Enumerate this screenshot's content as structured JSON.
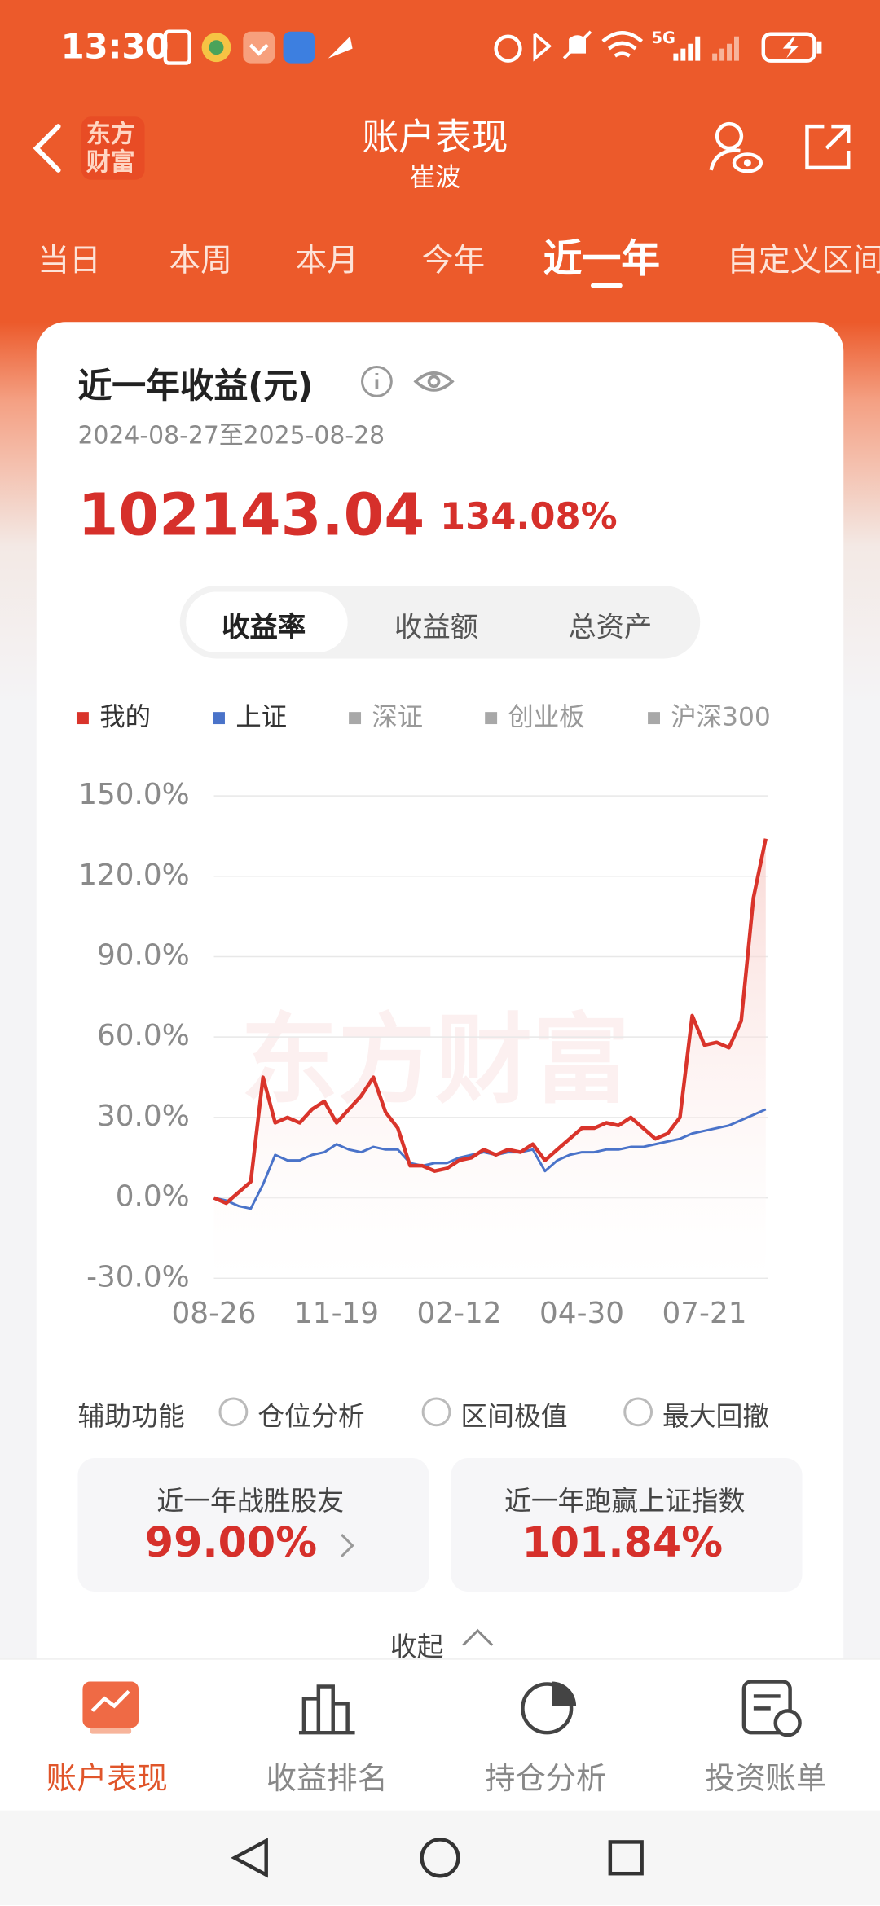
{
  "status_bar": {
    "time": "13:30",
    "network": "5G"
  },
  "header": {
    "logo": [
      "东方",
      "财富"
    ],
    "title": "账户表现",
    "subtitle": "崔波"
  },
  "tabs": {
    "items": [
      "当日",
      "本周",
      "本月",
      "今年",
      "近一年",
      "自定义区间"
    ],
    "active": 4
  },
  "card": {
    "title": "近一年收益(元)",
    "date_range": "2024-08-27至2025-08-28",
    "amount": "102143.04",
    "return_pct": "134.08%",
    "segments": [
      "收益率",
      "收益额",
      "总资产"
    ],
    "active_segment": 0
  },
  "chart_data": {
    "type": "line",
    "watermark": "东方财富",
    "categories": [
      "08-26",
      null,
      null,
      null,
      null,
      null,
      null,
      null,
      null,
      null,
      "11-19",
      null,
      null,
      null,
      null,
      null,
      null,
      null,
      null,
      null,
      "02-12",
      null,
      null,
      null,
      null,
      null,
      null,
      null,
      null,
      null,
      "04-30",
      null,
      null,
      null,
      null,
      null,
      null,
      null,
      null,
      null,
      "07-21",
      null,
      null,
      null,
      null,
      null
    ],
    "series": [
      {
        "name": "我的",
        "color": "#d9342b",
        "values": [
          0,
          -2,
          2,
          6,
          45,
          28,
          30,
          28,
          33,
          36,
          28,
          33,
          38,
          45,
          32,
          26,
          12,
          12,
          10,
          11,
          14,
          15,
          18,
          16,
          18,
          17,
          20,
          14,
          18,
          22,
          26,
          26,
          28,
          27,
          30,
          26,
          22,
          24,
          30,
          68,
          57,
          58,
          56,
          66,
          112,
          134
        ]
      },
      {
        "name": "上证",
        "color": "#4a73c9",
        "values": [
          0,
          -1,
          -3,
          -4,
          5,
          16,
          14,
          14,
          16,
          17,
          20,
          18,
          17,
          19,
          18,
          18,
          13,
          12,
          13,
          13,
          15,
          16,
          17,
          16,
          17,
          17,
          18,
          10,
          14,
          16,
          17,
          17,
          18,
          18,
          19,
          19,
          20,
          21,
          22,
          24,
          25,
          26,
          27,
          29,
          31,
          33
        ]
      }
    ],
    "hidden_series": [
      {
        "name": "深证",
        "color": "#a8a8a8"
      },
      {
        "name": "创业板",
        "color": "#a8a8a8"
      },
      {
        "name": "沪深300",
        "color": "#a8a8a8"
      }
    ],
    "ylim": [
      -30,
      150
    ],
    "yticks": [
      {
        "value": -30,
        "label": "-30.0%"
      },
      {
        "value": 0,
        "label": "0.0%"
      },
      {
        "value": 30,
        "label": "30.0%"
      },
      {
        "value": 60,
        "label": "60.0%"
      },
      {
        "value": 90,
        "label": "90.0%"
      },
      {
        "value": 120,
        "label": "120.0%"
      },
      {
        "value": 150,
        "label": "150.0%"
      }
    ],
    "grid": true
  },
  "aux": {
    "label": "辅助功能",
    "options": [
      "仓位分析",
      "区间极值",
      "最大回撤"
    ]
  },
  "stats": [
    {
      "label": "近一年战胜股友",
      "value": "99.00%"
    },
    {
      "label": "近一年跑赢上证指数",
      "value": "101.84%"
    }
  ],
  "collapse": "收起",
  "bottom_nav": {
    "items": [
      "账户表现",
      "收益排名",
      "持仓分析",
      "投资账单"
    ],
    "active": 0
  }
}
